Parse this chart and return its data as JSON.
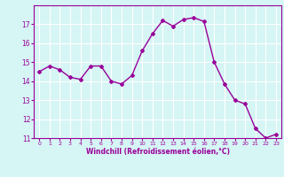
{
  "x": [
    0,
    1,
    2,
    3,
    4,
    5,
    6,
    7,
    8,
    9,
    10,
    11,
    12,
    13,
    14,
    15,
    16,
    17,
    18,
    19,
    20,
    21,
    22,
    23
  ],
  "y": [
    14.5,
    14.8,
    14.6,
    14.2,
    14.1,
    14.8,
    14.8,
    14.0,
    13.85,
    14.3,
    15.6,
    16.5,
    17.2,
    16.9,
    17.25,
    17.35,
    17.15,
    15.0,
    13.85,
    13.0,
    12.8,
    11.5,
    11.0,
    11.2
  ],
  "line_color": "#990099",
  "marker": "D",
  "marker_size": 2,
  "bg_color": "#d6f5f5",
  "grid_color": "#ffffff",
  "xlabel": "Windchill (Refroidissement éolien,°C)",
  "xlabel_color": "#990099",
  "tick_color": "#990099",
  "ylim": [
    11,
    18
  ],
  "xlim": [
    -0.5,
    23.5
  ],
  "yticks": [
    11,
    12,
    13,
    14,
    15,
    16,
    17
  ],
  "xticks": [
    0,
    1,
    2,
    3,
    4,
    5,
    6,
    7,
    8,
    9,
    10,
    11,
    12,
    13,
    14,
    15,
    16,
    17,
    18,
    19,
    20,
    21,
    22,
    23
  ]
}
